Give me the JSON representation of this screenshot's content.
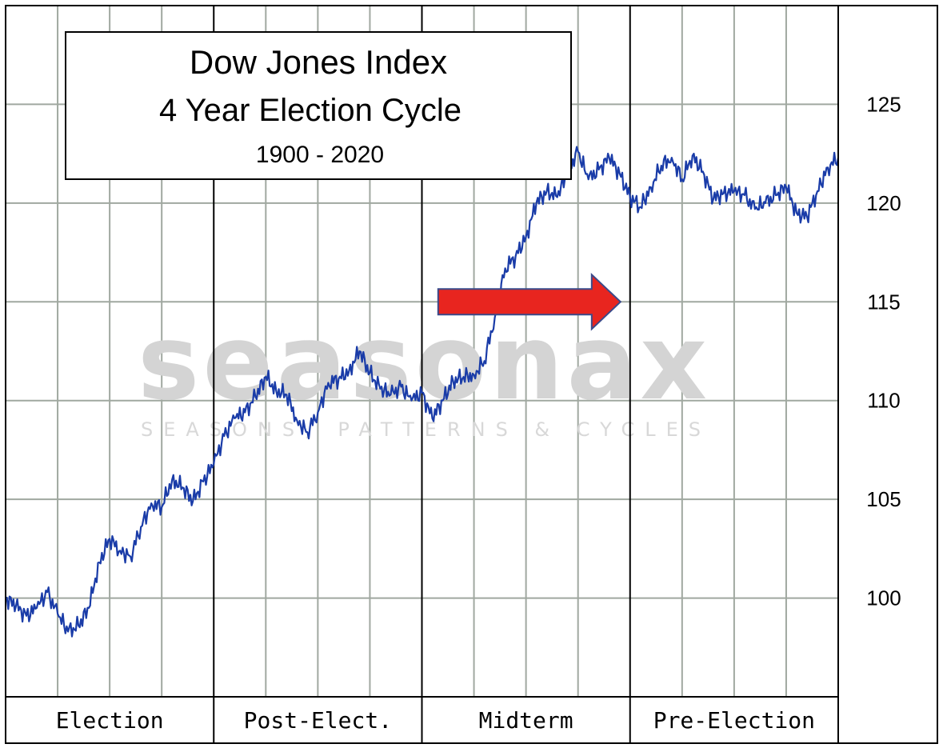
{
  "chart_data": {
    "type": "line",
    "title": "Dow Jones Index",
    "subtitle": "4 Year Election Cycle",
    "date_range": "1900 - 2020",
    "watermark": "seasonax",
    "watermark_tagline": "SEASONS, PATTERNS & CYCLES",
    "y_axis": {
      "min": 95,
      "max": 130,
      "ticks": [
        100,
        105,
        110,
        115,
        120,
        125
      ],
      "position": "right"
    },
    "periods": [
      "Election",
      "Post-Elect.",
      "Midterm",
      "Pre-Election"
    ],
    "grid": true,
    "x_range": [
      0,
      4
    ],
    "annotation": {
      "type": "arrow",
      "color": "#e8251f",
      "points_to_x": 3.0,
      "points_to_y": 115
    },
    "series": [
      {
        "name": "Dow Jones Index",
        "color": "#1a3ca8",
        "x": [
          0.0,
          0.05,
          0.1,
          0.15,
          0.2,
          0.25,
          0.3,
          0.35,
          0.4,
          0.45,
          0.5,
          0.55,
          0.6,
          0.65,
          0.7,
          0.75,
          0.8,
          0.85,
          0.9,
          0.95,
          1.0,
          1.05,
          1.1,
          1.15,
          1.2,
          1.25,
          1.3,
          1.35,
          1.4,
          1.45,
          1.5,
          1.55,
          1.6,
          1.65,
          1.7,
          1.75,
          1.8,
          1.85,
          1.9,
          1.95,
          2.0,
          2.05,
          2.1,
          2.15,
          2.2,
          2.25,
          2.3,
          2.35,
          2.4,
          2.45,
          2.5,
          2.55,
          2.6,
          2.65,
          2.7,
          2.75,
          2.8,
          2.85,
          2.9,
          2.95,
          3.0,
          3.05,
          3.1,
          3.15,
          3.2,
          3.25,
          3.3,
          3.35,
          3.4,
          3.45,
          3.5,
          3.55,
          3.6,
          3.65,
          3.7,
          3.75,
          3.8,
          3.85,
          3.9,
          3.95,
          4.0
        ],
        "values": [
          100.0,
          99.6,
          99.1,
          99.5,
          100.3,
          99.2,
          98.3,
          98.6,
          99.5,
          101.8,
          103.0,
          102.4,
          102.1,
          103.6,
          104.8,
          104.6,
          106.0,
          105.6,
          104.9,
          105.9,
          106.8,
          108.2,
          109.1,
          109.4,
          110.2,
          111.2,
          110.5,
          110.3,
          109.0,
          108.4,
          109.4,
          110.9,
          111.1,
          111.5,
          112.5,
          111.4,
          110.6,
          110.3,
          110.7,
          110.0,
          110.4,
          109.1,
          110.0,
          111.0,
          111.2,
          111.3,
          112.0,
          114.2,
          116.7,
          117.3,
          118.3,
          120.0,
          120.6,
          120.3,
          121.6,
          122.6,
          121.2,
          121.7,
          122.3,
          121.5,
          120.3,
          119.8,
          120.8,
          121.9,
          122.3,
          121.2,
          122.4,
          121.6,
          120.2,
          120.5,
          120.6,
          120.4,
          119.7,
          120.0,
          120.4,
          120.8,
          119.5,
          119.3,
          120.6,
          121.8,
          122.3
        ]
      }
    ]
  }
}
